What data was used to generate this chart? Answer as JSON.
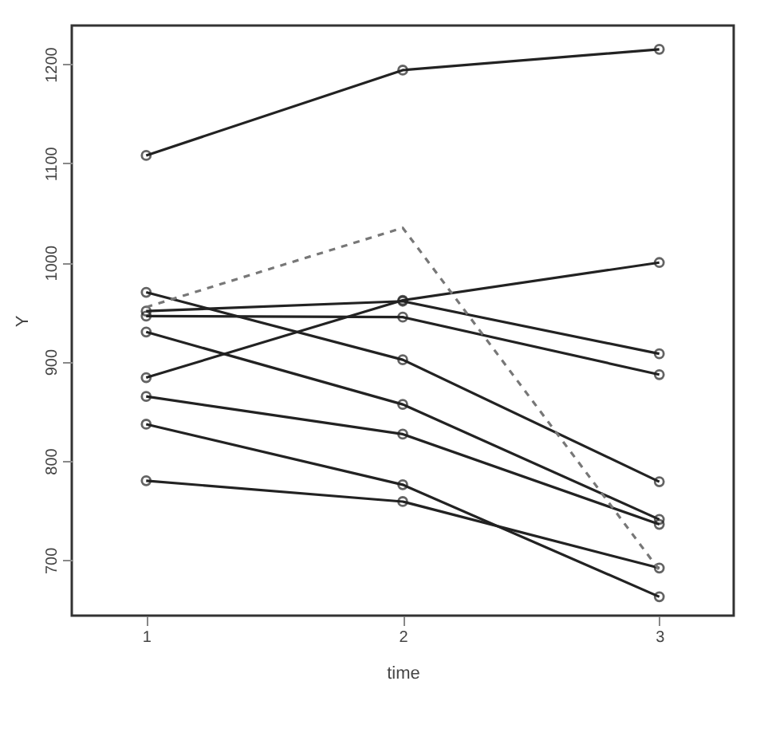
{
  "chart_data": {
    "type": "line",
    "xlabel": "time",
    "ylabel": "Y",
    "xlim": [
      0.71,
      3.29
    ],
    "xticks": [
      1,
      2,
      3
    ],
    "ylim": [
      644,
      1239
    ],
    "yticks": [
      700,
      800,
      900,
      1000,
      1100,
      1200
    ],
    "marker": "circle",
    "line_style": "solid",
    "x": [
      1,
      2,
      3
    ],
    "series": [
      {
        "color": "#222222",
        "values": [
          1108,
          1194,
          1215
        ]
      },
      {
        "color": "#222222",
        "values": [
          884,
          962,
          1000
        ]
      },
      {
        "color": "#222222",
        "values": [
          970,
          902,
          779
        ]
      },
      {
        "color": "#222222",
        "values": [
          930,
          857,
          741
        ]
      },
      {
        "color": "#222222",
        "values": [
          865,
          827,
          736
        ]
      },
      {
        "color": "#222222",
        "values": [
          837,
          776,
          663
        ]
      },
      {
        "color": "#222222",
        "values": [
          780,
          759,
          692
        ]
      },
      {
        "color": "#222222",
        "values": [
          951,
          961,
          908
        ]
      },
      {
        "color": "#222222",
        "values": [
          946,
          945,
          887
        ]
      },
      {
        "color": "#777777",
        "values": [
          955,
          1035,
          690
        ],
        "line_style": "dashed",
        "marker": "none"
      }
    ]
  }
}
